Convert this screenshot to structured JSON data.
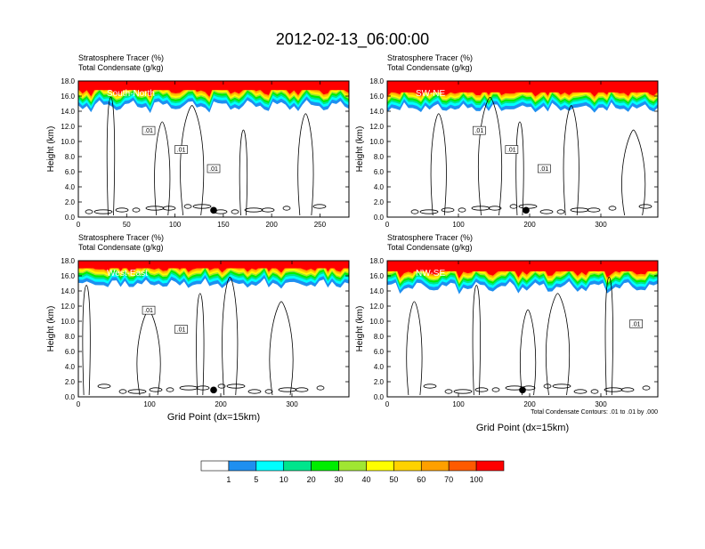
{
  "title": "2012-02-13_06:00:00",
  "chart_data": [
    {
      "type": "heatmap",
      "cross_section": "South-North",
      "var1": "Stratosphere Tracer   (%)",
      "var2": "Total Condensate   (g/kg)",
      "ylabel": "Height (km)",
      "xlabel": "",
      "xlim": [
        0,
        280
      ],
      "ylim": [
        0,
        18
      ],
      "xticks": [
        "0",
        "50",
        "100",
        "150",
        "200",
        "250"
      ],
      "yticks": [
        "0.0",
        "2.0",
        "4.0",
        "6.0",
        "8.0",
        "10.0",
        "12.0",
        "14.0",
        "16.0",
        "18.0"
      ],
      "tracer_base_km": 14.8,
      "marker_x": 140,
      "contour_labels": [
        ".01",
        ".01",
        ".01"
      ]
    },
    {
      "type": "heatmap",
      "cross_section": "SW-NE",
      "var1": "Stratosphere Tracer   (%)",
      "var2": "Total Condensate   (g/kg)",
      "ylabel": "Height (km)",
      "xlabel": "",
      "xlim": [
        0,
        380
      ],
      "ylim": [
        0,
        18
      ],
      "xticks": [
        "0",
        "100",
        "200",
        "300"
      ],
      "yticks": [
        "0.0",
        "2.0",
        "4.0",
        "6.0",
        "8.0",
        "10.0",
        "12.0",
        "14.0",
        "16.0",
        "18.0"
      ],
      "tracer_base_km": 14.5,
      "marker_x": 195,
      "contour_labels": [
        ".01",
        ".01",
        ".01"
      ]
    },
    {
      "type": "heatmap",
      "cross_section": "West-East",
      "var1": "Stratosphere Tracer   (%)",
      "var2": "Total Condensate   (g/kg)",
      "ylabel": "Height (km)",
      "xlabel": "Grid Point (dx=15km)",
      "xlim": [
        0,
        380
      ],
      "ylim": [
        0,
        18
      ],
      "xticks": [
        "0",
        "100",
        "200",
        "300"
      ],
      "yticks": [
        "0.0",
        "2.0",
        "4.0",
        "6.0",
        "8.0",
        "10.0",
        "12.0",
        "14.0",
        "16.0",
        "18.0"
      ],
      "tracer_base_km": 15.0,
      "marker_x": 190,
      "contour_labels": [
        ".01",
        ".01"
      ]
    },
    {
      "type": "heatmap",
      "cross_section": "NW-SE",
      "var1": "Stratosphere Tracer   (%)",
      "var2": "Total Condensate   (g/kg)",
      "ylabel": "Height (km)",
      "xlabel": "Grid Point (dx=15km)",
      "xlim": [
        0,
        380
      ],
      "ylim": [
        0,
        18
      ],
      "xticks": [
        "0",
        "100",
        "200",
        "300"
      ],
      "yticks": [
        "0.0",
        "2.0",
        "4.0",
        "6.0",
        "8.0",
        "10.0",
        "12.0",
        "14.0",
        "16.0",
        "18.0"
      ],
      "tracer_base_km": 14.6,
      "marker_x": 190,
      "contour_labels": [
        ".01"
      ],
      "contour_info": "Total Condensate Contours: .01 to .01 by .000"
    }
  ],
  "colorbar": {
    "labels": [
      "1",
      "5",
      "10",
      "20",
      "30",
      "40",
      "50",
      "60",
      "70",
      "100"
    ],
    "colors": [
      "#ffffff",
      "#1e8ff0",
      "#00ffff",
      "#00e58c",
      "#00ee00",
      "#a0e632",
      "#ffff00",
      "#ffd200",
      "#ffa000",
      "#ff5a00",
      "#ff0000"
    ]
  }
}
